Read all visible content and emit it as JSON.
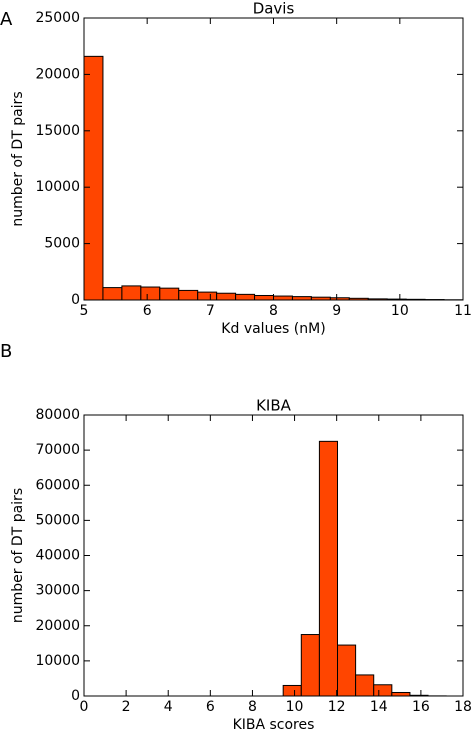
{
  "chart_data": [
    {
      "type": "histogram",
      "panel_label": "A",
      "title": "Davis",
      "x_label": "Kd values (nM)",
      "y_label": "number of DT pairs",
      "bins": [
        5,
        5.3,
        5.6,
        5.9,
        6.2,
        6.5,
        6.8,
        7.1,
        7.4,
        7.7,
        8.0,
        8.3,
        8.6,
        8.9,
        9.2,
        9.5,
        9.8,
        10.1,
        10.4,
        10.7,
        11
      ],
      "counts": [
        21600,
        1100,
        1250,
        1150,
        1050,
        850,
        700,
        600,
        500,
        400,
        350,
        300,
        250,
        200,
        150,
        100,
        80,
        60,
        40,
        20
      ],
      "color": "#ff4500",
      "xlim": [
        5,
        11
      ],
      "xticks": [
        5,
        6,
        7,
        8,
        9,
        10,
        11
      ],
      "ylim": [
        0,
        25000
      ],
      "yticks": [
        0,
        5000,
        10000,
        15000,
        20000,
        25000
      ]
    },
    {
      "type": "histogram",
      "panel_label": "B",
      "title": "KIBA",
      "x_label": "KIBA scores",
      "y_label": "number of DT pairs",
      "bins": [
        0,
        0.86,
        1.72,
        2.58,
        3.44,
        4.3,
        5.16,
        6.02,
        6.88,
        7.74,
        8.6,
        9.46,
        10.32,
        11.18,
        12.04,
        12.9,
        13.76,
        14.62,
        15.48,
        16.34,
        17.2
      ],
      "counts": [
        0,
        0,
        0,
        0,
        0,
        0,
        0,
        0,
        0,
        0,
        0,
        3000,
        17500,
        72500,
        14500,
        6000,
        3200,
        1000,
        200,
        30
      ],
      "color": "#ff4500",
      "xlim": [
        0,
        18
      ],
      "xticks": [
        0,
        2,
        4,
        6,
        8,
        10,
        12,
        14,
        16,
        18
      ],
      "ylim": [
        0,
        80000
      ],
      "yticks": [
        0,
        10000,
        20000,
        30000,
        40000,
        50000,
        60000,
        70000,
        80000
      ]
    }
  ]
}
